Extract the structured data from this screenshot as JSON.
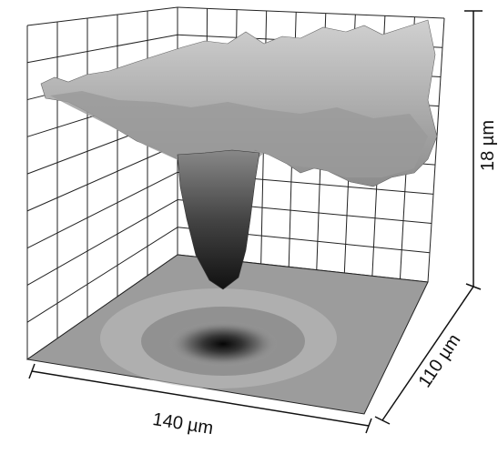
{
  "dimensions": {
    "x": "140 µm",
    "y": "110 µm",
    "z": "18 µm"
  }
}
